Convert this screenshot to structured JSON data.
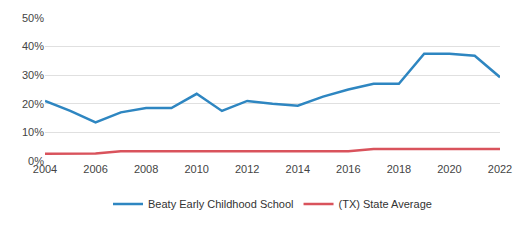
{
  "chart_data": {
    "type": "line",
    "x": [
      2004,
      2005,
      2006,
      2007,
      2008,
      2009,
      2010,
      2011,
      2012,
      2013,
      2014,
      2015,
      2016,
      2017,
      2018,
      2019,
      2020,
      2021,
      2022
    ],
    "series": [
      {
        "name": "Beaty Early Childhood School",
        "color": "#2e86c1",
        "values": [
          21,
          17.5,
          13.5,
          17,
          18.5,
          18.5,
          23.5,
          17.5,
          21,
          20,
          19.3,
          22.5,
          25,
          27,
          27,
          37.5,
          37.5,
          36.8,
          29.3
        ]
      },
      {
        "name": "(TX) State Average",
        "color": "#d9535c",
        "values": [
          2.5,
          2.5,
          2.6,
          3.4,
          3.4,
          3.4,
          3.4,
          3.4,
          3.4,
          3.4,
          3.4,
          3.4,
          3.4,
          4.2,
          4.2,
          4.2,
          4.2,
          4.2,
          4.2
        ]
      }
    ],
    "xlim": [
      2004,
      2022
    ],
    "xticks": [
      2004,
      2006,
      2008,
      2010,
      2012,
      2014,
      2016,
      2018,
      2020,
      2022
    ],
    "ylim": [
      0,
      50
    ],
    "yticks": [
      {
        "value": 0,
        "label": "0%"
      },
      {
        "value": 10,
        "label": "10%"
      },
      {
        "value": 20,
        "label": "20%"
      },
      {
        "value": 30,
        "label": "30%"
      },
      {
        "value": 40,
        "label": "40%"
      },
      {
        "value": 50,
        "label": "50%"
      }
    ],
    "grid": true,
    "legend": "bottom"
  }
}
